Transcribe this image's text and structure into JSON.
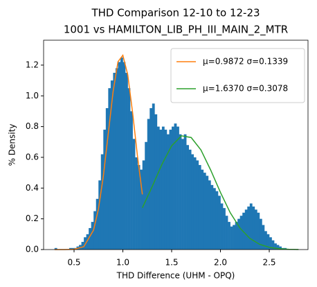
{
  "chart_data": {
    "type": "histogram",
    "title": "THD Comparison 12-10 to 12-23",
    "subtitle": "1001 vs HAMILTON_LIB_PH_III_MAIN_2_MTR",
    "x_label": "THD Difference  (UHM - OPQ)",
    "y_label": "% Density",
    "color": "#1f77b4",
    "bins": [
      0.3,
      0.325,
      0.35,
      0.375,
      0.4,
      0.425,
      0.45,
      0.475,
      0.5,
      0.525,
      0.55,
      0.575,
      0.6,
      0.625,
      0.65,
      0.675,
      0.7,
      0.725,
      0.75,
      0.775,
      0.8,
      0.825,
      0.85,
      0.875,
      0.9,
      0.925,
      0.95,
      0.975,
      1.0,
      1.025,
      1.05,
      1.075,
      1.1,
      1.125,
      1.15,
      1.175,
      1.2,
      1.225,
      1.25,
      1.275,
      1.3,
      1.325,
      1.35,
      1.375,
      1.4,
      1.425,
      1.45,
      1.475,
      1.5,
      1.525,
      1.55,
      1.575,
      1.6,
      1.625,
      1.65,
      1.675,
      1.7,
      1.725,
      1.75,
      1.775,
      1.8,
      1.825,
      1.85,
      1.875,
      1.9,
      1.925,
      1.95,
      1.975,
      2.0,
      2.025,
      2.05,
      2.075,
      2.1,
      2.125,
      2.15,
      2.175,
      2.2,
      2.225,
      2.25,
      2.275,
      2.3,
      2.325,
      2.35,
      2.375,
      2.4,
      2.425,
      2.45,
      2.475,
      2.5,
      2.525,
      2.55,
      2.575,
      2.6,
      2.625,
      2.65,
      2.675,
      2.7,
      2.725,
      2.75,
      2.775,
      2.8
    ],
    "values": [
      0.01,
      0,
      0,
      0,
      0,
      0,
      0.01,
      0.01,
      0.01,
      0.02,
      0.03,
      0.05,
      0.08,
      0.1,
      0.14,
      0.18,
      0.25,
      0.33,
      0.45,
      0.62,
      0.78,
      0.92,
      1.05,
      1.1,
      1.15,
      1.18,
      1.22,
      1.25,
      1.22,
      1.15,
      1.05,
      0.9,
      0.72,
      0.6,
      0.55,
      0.52,
      0.58,
      0.7,
      0.85,
      0.92,
      0.95,
      0.88,
      0.8,
      0.78,
      0.8,
      0.78,
      0.75,
      0.78,
      0.8,
      0.82,
      0.8,
      0.75,
      0.72,
      0.75,
      0.68,
      0.65,
      0.62,
      0.6,
      0.58,
      0.55,
      0.52,
      0.5,
      0.48,
      0.45,
      0.42,
      0.4,
      0.38,
      0.35,
      0.3,
      0.27,
      0.22,
      0.18,
      0.15,
      0.16,
      0.18,
      0.2,
      0.22,
      0.24,
      0.26,
      0.28,
      0.3,
      0.28,
      0.26,
      0.24,
      0.2,
      0.16,
      0.12,
      0.1,
      0.08,
      0.06,
      0.04,
      0.03,
      0.02,
      0.01,
      0.01,
      0,
      0,
      0,
      0,
      0
    ],
    "series": [
      {
        "name": "μ=0.9872 σ=0.1339",
        "color": "#ff7f0e",
        "x": [
          0.3,
          0.4,
          0.5,
          0.6,
          0.7,
          0.75,
          0.8,
          0.85,
          0.9,
          0.95,
          1.0,
          1.05,
          1.1,
          1.15,
          1.2
        ],
        "values": [
          0,
          0.0001,
          0.0017,
          0.019,
          0.127,
          0.265,
          0.478,
          0.752,
          1.027,
          1.222,
          1.264,
          1.138,
          0.891,
          0.607,
          0.359
        ]
      },
      {
        "name": "μ=1.6370 σ=0.3078",
        "color": "#2ca02c",
        "x": [
          1.2,
          1.3,
          1.4,
          1.5,
          1.6,
          1.7,
          1.8,
          1.9,
          2.0,
          2.1,
          2.2,
          2.3,
          2.4,
          2.5,
          2.6,
          2.7,
          2.8
        ],
        "values": [
          0.272,
          0.409,
          0.554,
          0.675,
          0.74,
          0.729,
          0.648,
          0.517,
          0.372,
          0.24,
          0.14,
          0.073,
          0.0345,
          0.0146,
          0.0056,
          0.0019,
          0.0006
        ]
      }
    ],
    "xlim": [
      0.188,
      2.897
    ],
    "ylim": [
      0,
      1.362
    ],
    "xticks": [
      0.5,
      {
        "value": 1,
        "label": "1.0"
      },
      1.5,
      {
        "value": 2,
        "label": "2.0"
      },
      2.5
    ],
    "yticks": [
      {
        "value": 0,
        "label": "0.0"
      },
      0.2,
      0.4,
      0.6,
      0.8,
      {
        "value": 1,
        "label": "1.0"
      },
      1.2
    ],
    "legend": "upper right"
  }
}
